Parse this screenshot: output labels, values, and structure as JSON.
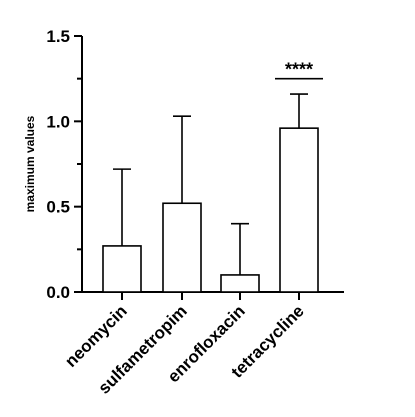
{
  "chart_data": {
    "type": "bar",
    "categories": [
      "neomycin",
      "sulfametropim",
      "enrofloxacin",
      "tetracycline"
    ],
    "values": [
      0.27,
      0.52,
      0.1,
      0.96
    ],
    "error_upper": [
      0.72,
      1.03,
      0.4,
      1.16
    ],
    "ylabel": "maximum values",
    "xlabel": "",
    "ylim": [
      0,
      1.5
    ],
    "yticks": [
      0.0,
      0.5,
      1.0,
      1.5
    ],
    "ytick_labels": [
      "0.0",
      "0.5",
      "1.0",
      "1.5"
    ],
    "minor_yticks": [
      0.25,
      0.75,
      1.25
    ],
    "grid": false,
    "legend": "none",
    "bar_fill": "#ffffff",
    "stroke_color": "#000000",
    "annotations": [
      {
        "label": "****",
        "category": "tetracycline",
        "y": 1.25
      }
    ]
  }
}
